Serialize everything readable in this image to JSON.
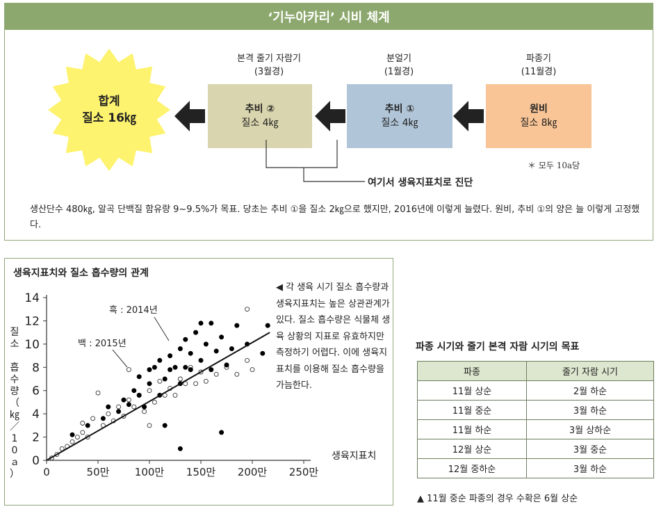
{
  "top": {
    "title": "‘기누아카리’ 시비 체계",
    "stages": [
      {
        "period": "본격 줄기 자람기",
        "month": "(3월경)",
        "type": "추비 ②",
        "amount": "질소 4㎏",
        "color": "#d9d5ae"
      },
      {
        "period": "분얼기",
        "month": "(1월경)",
        "type": "추비 ①",
        "amount": "질소 4㎏",
        "color": "#b1c5d8"
      },
      {
        "period": "파종기",
        "month": "(11월경)",
        "type": "원비",
        "amount": "질소 8㎏",
        "color": "#f9c596"
      }
    ],
    "total": {
      "label": "합계",
      "amount": "질소 16㎏",
      "color": "#fdf36e"
    },
    "per_area": "＊ 모두 10a당",
    "diagnosis": "여기서 생육지표치로 진단",
    "note": "생산단수 480㎏, 알곡 단백질 함유량 9~9.5%가 목표. 당초는 추비 ①을 질소 2㎏으로 했지만, 2016년에 이렇게 늘렸다. 원비, 추비 ①의 양은 늘 이렇게 고정했다."
  },
  "chart": {
    "title": "생육지표치와 질소 흡수량의 관계",
    "description": "◀ 각 생육 시기 질소 흡수량과 생육지표치는 높은 상관관계가 있다. 질소 흡수량은 식물체 생육 상황의 지표로 유효하지만 측정하기 어렵다. 이에 생육지표치를 이용해 질소 흡수량을 가늠한다."
  },
  "chart_data": {
    "type": "scatter",
    "title": "생육지표치와 질소 흡수량의 관계",
    "xlabel": "생육지표치",
    "ylabel": "질소 흡수량（㎏／10ａ）",
    "xlim": [
      0,
      2500000
    ],
    "ylim": [
      0,
      14
    ],
    "x_ticks": [
      "0",
      "50만",
      "100만",
      "150만",
      "200만",
      "250만"
    ],
    "y_ticks": [
      "0",
      "2",
      "4",
      "6",
      "8",
      "10",
      "12",
      "14"
    ],
    "series": [
      {
        "name": "흑 : 2014년",
        "marker": "filled",
        "color": "#000000",
        "points": [
          [
            250000,
            2.2
          ],
          [
            400000,
            3.0
          ],
          [
            550000,
            3.6
          ],
          [
            600000,
            4.6
          ],
          [
            700000,
            4.2
          ],
          [
            750000,
            5.2
          ],
          [
            800000,
            4.8
          ],
          [
            850000,
            6.0
          ],
          [
            900000,
            5.6
          ],
          [
            900000,
            7.2
          ],
          [
            950000,
            4.6
          ],
          [
            1000000,
            6.6
          ],
          [
            1000000,
            7.8
          ],
          [
            1050000,
            8.0
          ],
          [
            1100000,
            5.6
          ],
          [
            1100000,
            8.6
          ],
          [
            1150000,
            7.0
          ],
          [
            1200000,
            7.8
          ],
          [
            1200000,
            9.0
          ],
          [
            1250000,
            8.0
          ],
          [
            1300000,
            6.6
          ],
          [
            1300000,
            9.6
          ],
          [
            1350000,
            8.0
          ],
          [
            1350000,
            10.4
          ],
          [
            1400000,
            7.8
          ],
          [
            1400000,
            9.2
          ],
          [
            1450000,
            11.0
          ],
          [
            1500000,
            8.6
          ],
          [
            1500000,
            11.8
          ],
          [
            1550000,
            10.0
          ],
          [
            1600000,
            7.8
          ],
          [
            1600000,
            11.8
          ],
          [
            1650000,
            9.4
          ],
          [
            1700000,
            10.6
          ],
          [
            1750000,
            8.2
          ],
          [
            1800000,
            9.6
          ],
          [
            1850000,
            11.6
          ],
          [
            1950000,
            10.0
          ],
          [
            2100000,
            9.2
          ],
          [
            2150000,
            11.6
          ],
          [
            1150000,
            3.0
          ],
          [
            1300000,
            1.0
          ],
          [
            1700000,
            2.4
          ]
        ]
      },
      {
        "name": "백 : 2015년",
        "marker": "open",
        "color": "#000000",
        "points": [
          [
            50000,
            0.2
          ],
          [
            100000,
            0.5
          ],
          [
            150000,
            1.0
          ],
          [
            200000,
            1.2
          ],
          [
            250000,
            1.6
          ],
          [
            300000,
            2.0
          ],
          [
            350000,
            2.4
          ],
          [
            350000,
            3.2
          ],
          [
            400000,
            2.0
          ],
          [
            450000,
            3.6
          ],
          [
            500000,
            5.8
          ],
          [
            550000,
            3.0
          ],
          [
            600000,
            4.0
          ],
          [
            650000,
            3.4
          ],
          [
            700000,
            4.6
          ],
          [
            750000,
            3.8
          ],
          [
            800000,
            5.2
          ],
          [
            800000,
            7.8
          ],
          [
            850000,
            4.6
          ],
          [
            900000,
            5.6
          ],
          [
            950000,
            4.2
          ],
          [
            1000000,
            6.0
          ],
          [
            1050000,
            5.0
          ],
          [
            1100000,
            6.8
          ],
          [
            1150000,
            5.6
          ],
          [
            1200000,
            6.2
          ],
          [
            1250000,
            5.6
          ],
          [
            1300000,
            7.0
          ],
          [
            1350000,
            6.6
          ],
          [
            1400000,
            8.0
          ],
          [
            1450000,
            6.6
          ],
          [
            1500000,
            7.6
          ],
          [
            1550000,
            6.8
          ],
          [
            1650000,
            7.4
          ],
          [
            1750000,
            8.0
          ],
          [
            1850000,
            7.4
          ],
          [
            1950000,
            8.6
          ],
          [
            2000000,
            7.8
          ],
          [
            1950000,
            13.0
          ],
          [
            1000000,
            3.0
          ]
        ]
      }
    ],
    "trend": {
      "x": [
        0,
        2170000
      ],
      "y": [
        0,
        11.0
      ]
    },
    "legend": "annotations near top-left of points",
    "grid": false
  },
  "table": {
    "title": "파종 시기와 줄기 본격 자람 시기의 목표",
    "headers": [
      "파종",
      "줄기 자람 시기"
    ],
    "rows": [
      [
        "11월 상순",
        "2월 하순"
      ],
      [
        "11월 중순",
        "3월 하순"
      ],
      [
        "11월 하순",
        "3월 상하순"
      ],
      [
        "12월 상순",
        "3월 중순"
      ],
      [
        "12월 중하순",
        "3월 하순"
      ]
    ],
    "footnote": "▲ 11월 중순 파종의 경우 수확은 6월 상순"
  }
}
